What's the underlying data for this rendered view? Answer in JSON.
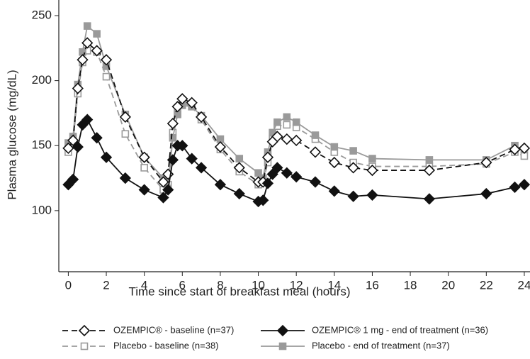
{
  "chart_data": {
    "type": "line",
    "xlabel": "Time since start of breakfast meal (hours)",
    "ylabel": "Plasma glucose (mg/dL)",
    "x": [
      0,
      0.25,
      0.5,
      0.75,
      1,
      1.5,
      2,
      3,
      4,
      5,
      5.25,
      5.5,
      5.75,
      6,
      6.5,
      7,
      8,
      9,
      10,
      10.25,
      10.5,
      10.75,
      11,
      11.5,
      12,
      13,
      14,
      15,
      16,
      19,
      22,
      23.5,
      24
    ],
    "xlim": [
      -0.5,
      24.3
    ],
    "xticks": [
      0,
      2,
      4,
      6,
      8,
      10,
      12,
      14,
      16,
      18,
      20,
      22,
      24
    ],
    "ylim": [
      53,
      262
    ],
    "yticks": [
      100,
      150,
      200,
      250
    ],
    "series": [
      {
        "name": "OZEMPIC® - baseline (n=37)",
        "color": "#111111",
        "dashed": true,
        "marker": "diamond",
        "filled": false,
        "values": [
          148,
          154,
          194,
          216,
          229,
          223,
          216,
          172,
          141,
          122,
          128,
          167,
          180,
          186,
          183,
          172,
          149,
          133,
          122,
          122,
          141,
          153,
          157,
          155,
          154,
          145,
          137,
          133,
          131,
          131,
          137,
          147,
          148
        ]
      },
      {
        "name": "OZEMPIC® 1 mg - end of treatment (n=36)",
        "color": "#111111",
        "dashed": false,
        "marker": "diamond",
        "filled": true,
        "values": [
          120,
          124,
          149,
          166,
          170,
          156,
          141,
          125,
          116,
          110,
          116,
          139,
          150,
          150,
          140,
          133,
          120,
          113,
          107,
          108,
          121,
          128,
          133,
          129,
          126,
          122,
          115,
          111,
          112,
          109,
          113,
          118,
          120
        ]
      },
      {
        "name": "Placebo - baseline (n=38)",
        "color": "#9a9a9a",
        "dashed": true,
        "marker": "square",
        "filled": false,
        "values": [
          145,
          153,
          190,
          214,
          223,
          222,
          203,
          159,
          133,
          116,
          120,
          160,
          175,
          183,
          180,
          170,
          147,
          130,
          120,
          122,
          137,
          155,
          165,
          166,
          164,
          155,
          145,
          137,
          134,
          134,
          136,
          145,
          142
        ]
      },
      {
        "name": "Placebo - end of treatment (n=37)",
        "color": "#9a9a9a",
        "dashed": false,
        "marker": "square",
        "filled": true,
        "values": [
          152,
          157,
          197,
          222,
          242,
          236,
          211,
          174,
          141,
          125,
          117,
          156,
          174,
          181,
          180,
          173,
          155,
          140,
          129,
          125,
          145,
          160,
          168,
          172,
          168,
          158,
          149,
          146,
          140,
          139,
          139,
          150,
          147
        ]
      }
    ]
  }
}
